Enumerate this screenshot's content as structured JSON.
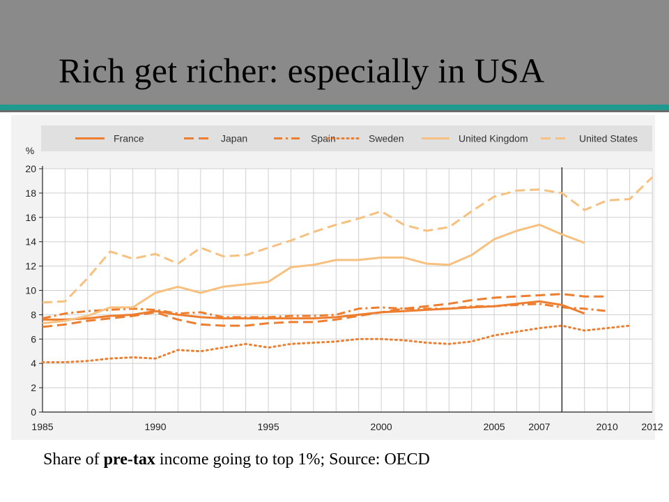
{
  "slide": {
    "title": "Rich get richer: especially in USA",
    "caption_pre": "Share of ",
    "caption_bold": "pre-tax",
    "caption_post": " income going to top 1%; Source: OECD"
  },
  "colors": {
    "header_bg": "#8a8a8a",
    "accent_rule": "#1e9a8e",
    "series_orange": "#ee7e2f",
    "series_light": "#f7c07e"
  },
  "chart_data": {
    "type": "line",
    "ylabel": "%",
    "ylim": [
      0,
      20
    ],
    "y_ticks": [
      0,
      2,
      4,
      6,
      8,
      10,
      12,
      14,
      16,
      18,
      20
    ],
    "xlim": [
      1985,
      2012
    ],
    "x_ticks": [
      1985,
      1990,
      1995,
      2000,
      2005,
      2007,
      2010,
      2012
    ],
    "vertical_marker": 2008,
    "grid": true,
    "legend_position": "top",
    "series": [
      {
        "name": "France",
        "style": "solid",
        "color": "#ee7e2f",
        "x": [
          1985,
          1986,
          1987,
          1988,
          1989,
          1990,
          1991,
          1992,
          1993,
          1994,
          1995,
          1996,
          1997,
          1998,
          1999,
          2000,
          2001,
          2002,
          2003,
          2004,
          2005,
          2006,
          2007,
          2008,
          2009
        ],
        "y": [
          7.6,
          7.6,
          7.7,
          7.9,
          8.0,
          8.3,
          8.0,
          7.8,
          7.7,
          7.7,
          7.7,
          7.7,
          7.7,
          7.8,
          8.0,
          8.2,
          8.3,
          8.4,
          8.5,
          8.6,
          8.7,
          8.9,
          9.1,
          8.8,
          8.1
        ]
      },
      {
        "name": "Japan",
        "style": "dashed",
        "color": "#ee7e2f",
        "x": [
          1985,
          1986,
          1987,
          1988,
          1989,
          1990,
          1991,
          1992,
          1993,
          1994,
          1995,
          1996,
          1997,
          1998,
          1999,
          2000,
          2001,
          2002,
          2003,
          2004,
          2005,
          2006,
          2007,
          2008,
          2009,
          2010
        ],
        "y": [
          7.0,
          7.2,
          7.5,
          7.7,
          7.9,
          8.2,
          7.6,
          7.2,
          7.1,
          7.1,
          7.3,
          7.4,
          7.4,
          7.6,
          7.9,
          8.2,
          8.5,
          8.7,
          8.9,
          9.2,
          9.4,
          9.5,
          9.6,
          9.7,
          9.5,
          9.5
        ]
      },
      {
        "name": "Spain",
        "style": "dashdot",
        "color": "#ee7e2f",
        "x": [
          1985,
          1986,
          1987,
          1988,
          1989,
          1990,
          1991,
          1992,
          1993,
          1994,
          1995,
          1996,
          1997,
          1998,
          1999,
          2000,
          2001,
          2002,
          2003,
          2004,
          2005,
          2006,
          2007,
          2008,
          2009,
          2010
        ],
        "y": [
          7.7,
          8.1,
          8.3,
          8.4,
          8.5,
          8.4,
          8.1,
          8.2,
          7.8,
          7.8,
          7.8,
          7.9,
          7.9,
          8.0,
          8.5,
          8.6,
          8.5,
          8.5,
          8.5,
          8.7,
          8.7,
          8.8,
          8.9,
          8.6,
          8.5,
          8.3
        ]
      },
      {
        "name": "Sweden",
        "style": "dotted",
        "color": "#ee7e2f",
        "x": [
          1985,
          1986,
          1987,
          1988,
          1989,
          1990,
          1991,
          1992,
          1993,
          1994,
          1995,
          1996,
          1997,
          1998,
          1999,
          2000,
          2001,
          2002,
          2003,
          2004,
          2005,
          2006,
          2007,
          2008,
          2009,
          2010,
          2011
        ],
        "y": [
          4.1,
          4.1,
          4.2,
          4.4,
          4.5,
          4.4,
          5.1,
          5.0,
          5.3,
          5.6,
          5.3,
          5.6,
          5.7,
          5.8,
          6.0,
          6.0,
          5.9,
          5.7,
          5.6,
          5.8,
          6.3,
          6.6,
          6.9,
          7.1,
          6.7,
          6.9,
          7.1
        ]
      },
      {
        "name": "United Kingdom",
        "style": "solid",
        "color": "#f7c07e",
        "x": [
          1985,
          1986,
          1987,
          1988,
          1989,
          1990,
          1991,
          1992,
          1993,
          1994,
          1995,
          1996,
          1997,
          1998,
          1999,
          2000,
          2001,
          2002,
          2003,
          2004,
          2005,
          2006,
          2007,
          2008,
          2009
        ],
        "y": [
          7.3,
          7.5,
          7.9,
          8.6,
          8.6,
          9.8,
          10.3,
          9.8,
          10.3,
          10.5,
          10.7,
          11.9,
          12.1,
          12.5,
          12.5,
          12.7,
          12.7,
          12.2,
          12.1,
          12.9,
          14.2,
          14.9,
          15.4,
          14.6,
          13.9
        ]
      },
      {
        "name": "United States",
        "style": "dashed",
        "color": "#f7c07e",
        "x": [
          1985,
          1986,
          1987,
          1988,
          1989,
          1990,
          1991,
          1992,
          1993,
          1994,
          1995,
          1996,
          1997,
          1998,
          1999,
          2000,
          2001,
          2002,
          2003,
          2004,
          2005,
          2006,
          2007,
          2008,
          2009,
          2010,
          2011,
          2012
        ],
        "y": [
          9.0,
          9.1,
          11.0,
          13.2,
          12.6,
          13.0,
          12.2,
          13.5,
          12.8,
          12.9,
          13.5,
          14.1,
          14.8,
          15.4,
          15.9,
          16.5,
          15.4,
          14.9,
          15.2,
          16.5,
          17.7,
          18.2,
          18.3,
          18.0,
          16.6,
          17.4,
          17.5,
          19.3
        ]
      }
    ]
  }
}
